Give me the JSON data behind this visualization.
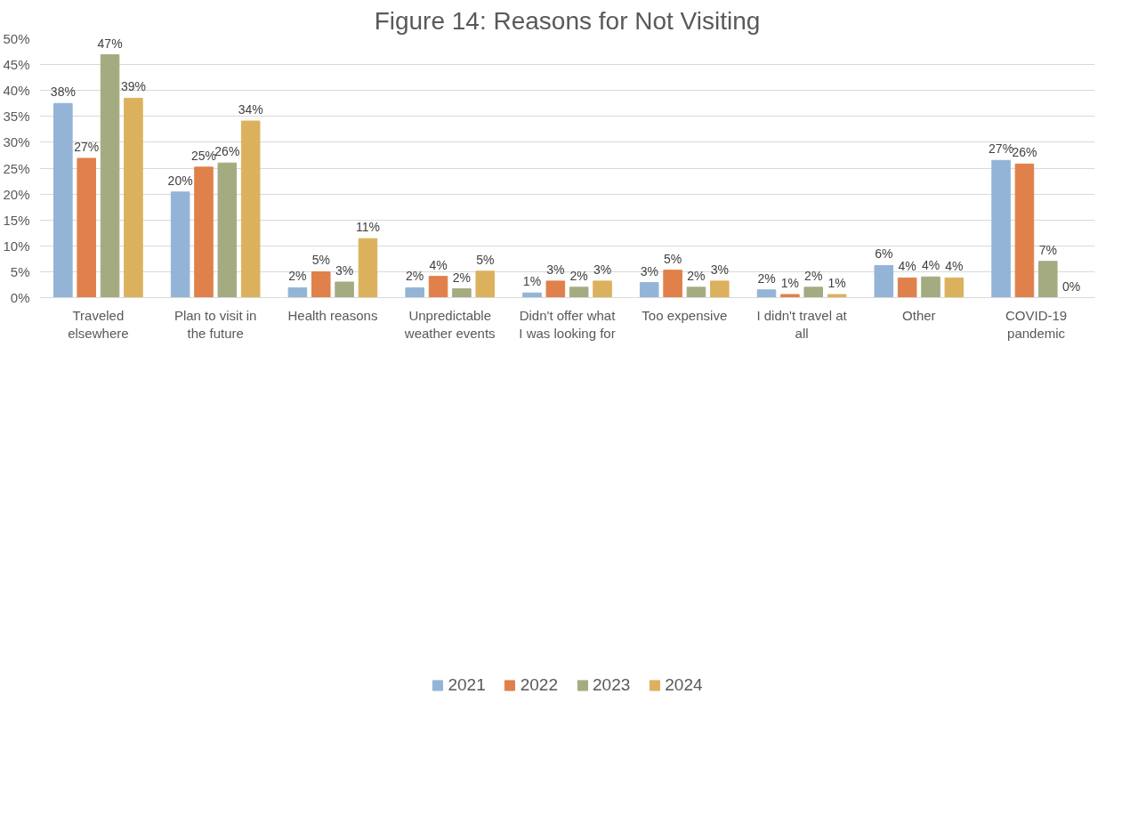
{
  "chart_data": {
    "type": "bar",
    "title": "Figure 14: Reasons for Not Visiting",
    "categories": [
      "Traveled\nelsewhere",
      "Plan to visit in\nthe future",
      "Health reasons",
      "Unpredictable\nweather events",
      "Didn't offer what\nI was looking for",
      "Too expensive",
      "I didn't travel at\nall",
      "Other",
      "COVID-19\npandemic"
    ],
    "series": [
      {
        "name": "2021",
        "color": "#93b4d6",
        "values": [
          37.5,
          20.4,
          1.9,
          1.9,
          0.9,
          2.9,
          1.5,
          6.2,
          26.5
        ],
        "value_labels": [
          "38%",
          "20%",
          "2%",
          "2%",
          "1%",
          "3%",
          "2%",
          "6%",
          "27%"
        ]
      },
      {
        "name": "2022",
        "color": "#e0804a",
        "values": [
          26.9,
          25.2,
          5.0,
          4.1,
          3.2,
          5.3,
          0.6,
          3.8,
          25.8
        ],
        "value_labels": [
          "27%",
          "25%",
          "5%",
          "4%",
          "3%",
          "5%",
          "1%",
          "4%",
          "26%"
        ]
      },
      {
        "name": "2023",
        "color": "#a5ab80",
        "values": [
          46.9,
          26.0,
          3.0,
          1.7,
          2.0,
          2.0,
          2.0,
          4.0,
          7.0
        ],
        "value_labels": [
          "47%",
          "26%",
          "3%",
          "2%",
          "2%",
          "2%",
          "2%",
          "4%",
          "7%"
        ]
      },
      {
        "name": "2024",
        "color": "#dcb15e",
        "values": [
          38.5,
          34.1,
          11.4,
          5.1,
          3.2,
          3.2,
          0.6,
          3.8,
          0
        ],
        "value_labels": [
          "39%",
          "34%",
          "11%",
          "5%",
          "3%",
          "3%",
          "1%",
          "4%",
          "0%"
        ]
      }
    ],
    "ylim": [
      0,
      50
    ],
    "yticks": [
      {
        "value": 0,
        "label": "0%"
      },
      {
        "value": 5,
        "label": "5%"
      },
      {
        "value": 10,
        "label": "10%"
      },
      {
        "value": 15,
        "label": "15%"
      },
      {
        "value": 20,
        "label": "20%"
      },
      {
        "value": 25,
        "label": "25%"
      },
      {
        "value": 30,
        "label": "30%"
      },
      {
        "value": 35,
        "label": "35%"
      },
      {
        "value": 40,
        "label": "40%"
      },
      {
        "value": 45,
        "label": "45%"
      },
      {
        "value": 50,
        "label": "50%"
      }
    ],
    "grid": "y",
    "legend": "bottom"
  }
}
